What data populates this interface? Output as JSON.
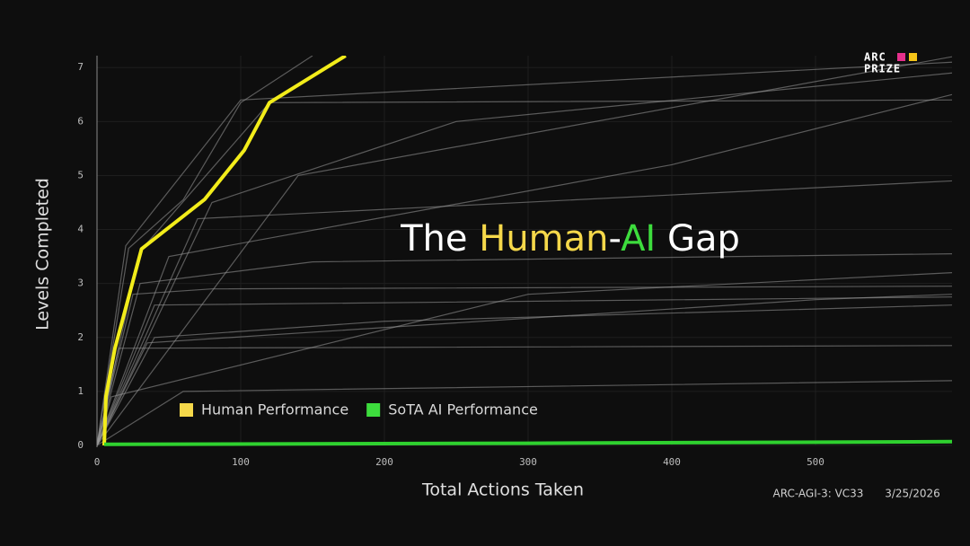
{
  "chart_data": {
    "type": "line",
    "title_parts": [
      {
        "text": "The ",
        "color": "#ffffff"
      },
      {
        "text": "Human",
        "color": "#f5d84a"
      },
      {
        "text": "-",
        "color": "#ffffff"
      },
      {
        "text": "AI",
        "color": "#3ddc3d"
      },
      {
        "text": " Gap",
        "color": "#ffffff"
      }
    ],
    "xlabel": "Total Actions Taken",
    "ylabel": "Levels Completed",
    "logo": [
      "ARC",
      "PRIZE"
    ],
    "footer": [
      "ARC-AGI-3: VC33",
      "3/25/2026"
    ],
    "xlim": [
      0,
      595
    ],
    "ylim": [
      0,
      7.22
    ],
    "xticks": [
      0,
      100,
      200,
      300,
      400,
      500
    ],
    "yticks": [
      0,
      1,
      2,
      3,
      4,
      5,
      6,
      7
    ],
    "grid": true,
    "series": [
      {
        "name": "Human Performance",
        "color": "#f2ec1a",
        "legend_color": "#f5d84a",
        "x": [
          5,
          6.25,
          12.5,
          31,
          75,
          102.5,
          120,
          173
        ],
        "values": [
          0,
          0.91,
          1.8,
          3.64,
          4.56,
          5.47,
          6.35,
          7.22
        ]
      },
      {
        "name": "SoTA AI Performance",
        "color": "#2fd12f",
        "legend_color": "#3ddc3d",
        "x": [
          5,
          300,
          595
        ],
        "values": [
          0.02,
          0.04,
          0.07
        ]
      }
    ],
    "traces_color": "#9a9a9a",
    "traces": [
      {
        "x": [
          0,
          30,
          120,
          595
        ],
        "values": [
          0,
          3.6,
          6.35,
          6.4
        ]
      },
      {
        "x": [
          0,
          25,
          80,
          595
        ],
        "values": [
          0,
          2.8,
          2.9,
          2.95
        ]
      },
      {
        "x": [
          0,
          40,
          200,
          595
        ],
        "values": [
          0,
          2.0,
          2.3,
          2.6
        ]
      },
      {
        "x": [
          0,
          15,
          595
        ],
        "values": [
          0,
          1.8,
          1.85
        ]
      },
      {
        "x": [
          0,
          50,
          400,
          595
        ],
        "values": [
          0,
          3.5,
          5.2,
          6.5
        ]
      },
      {
        "x": [
          0,
          30,
          150,
          595
        ],
        "values": [
          0,
          3.0,
          3.4,
          3.55
        ]
      },
      {
        "x": [
          0,
          60,
          595
        ],
        "values": [
          0,
          1.0,
          1.2
        ]
      },
      {
        "x": [
          0,
          20,
          100,
          595
        ],
        "values": [
          0,
          3.7,
          6.4,
          7.1
        ]
      },
      {
        "x": [
          0,
          80,
          250,
          595
        ],
        "values": [
          0,
          4.5,
          6.0,
          6.9
        ]
      },
      {
        "x": [
          0,
          10,
          300,
          595
        ],
        "values": [
          0,
          0.9,
          2.8,
          3.2
        ]
      },
      {
        "x": [
          0,
          40,
          595
        ],
        "values": [
          0,
          2.6,
          2.75
        ]
      },
      {
        "x": [
          0,
          140,
          595
        ],
        "values": [
          0,
          5.0,
          7.2
        ]
      },
      {
        "x": [
          0,
          22,
          60,
          100,
          150
        ],
        "values": [
          0,
          3.65,
          4.55,
          6.35,
          7.22
        ]
      },
      {
        "x": [
          0,
          35,
          500,
          595
        ],
        "values": [
          0,
          1.9,
          2.7,
          2.8
        ]
      },
      {
        "x": [
          0,
          70,
          595
        ],
        "values": [
          0,
          4.2,
          4.9
        ]
      }
    ]
  }
}
